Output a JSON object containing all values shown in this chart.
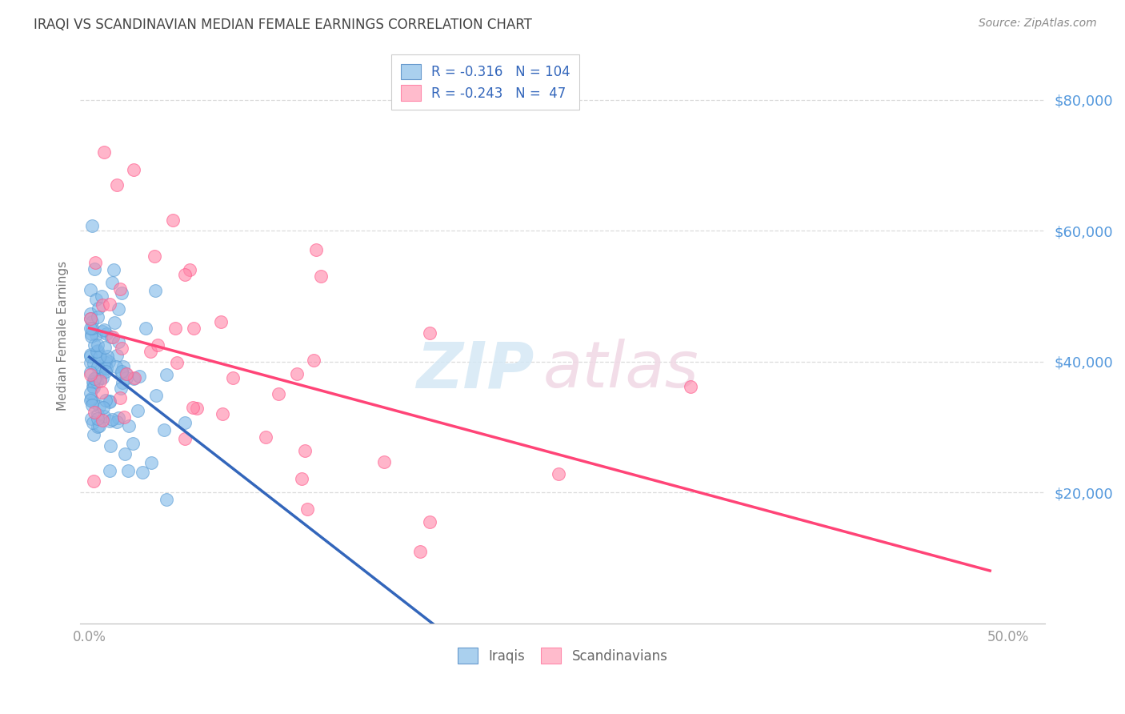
{
  "title": "IRAQI VS SCANDINAVIAN MEDIAN FEMALE EARNINGS CORRELATION CHART",
  "source": "Source: ZipAtlas.com",
  "ylabel": "Median Female Earnings",
  "ytick_labels": [
    "$80,000",
    "$60,000",
    "$40,000",
    "$20,000"
  ],
  "ytick_values": [
    80000,
    60000,
    40000,
    20000
  ],
  "ymin": 0,
  "ymax": 88000,
  "xmin": -0.005,
  "xmax": 0.52,
  "watermark_zip": "ZIP",
  "watermark_atlas": "atlas",
  "iraqis_color": "#7EB8E8",
  "scandinavians_color": "#FF85A8",
  "iraqis_edge_color": "#5A9CD4",
  "scandinavians_edge_color": "#FF5588",
  "iraqis_line_color": "#3366BB",
  "scandinavians_line_color": "#FF4477",
  "dashed_line_color": "#AACCEE",
  "iraqis_N": 104,
  "scandinavians_N": 47,
  "iraqis_R": -0.316,
  "scandinavians_R": -0.243,
  "background_color": "#FFFFFF",
  "grid_color": "#CCCCCC",
  "title_color": "#444444",
  "axis_label_color": "#5599DD",
  "ytick_color": "#5599DD",
  "source_color": "#888888",
  "legend_text_color": "#3366BB",
  "bottom_legend_color": "#666666"
}
